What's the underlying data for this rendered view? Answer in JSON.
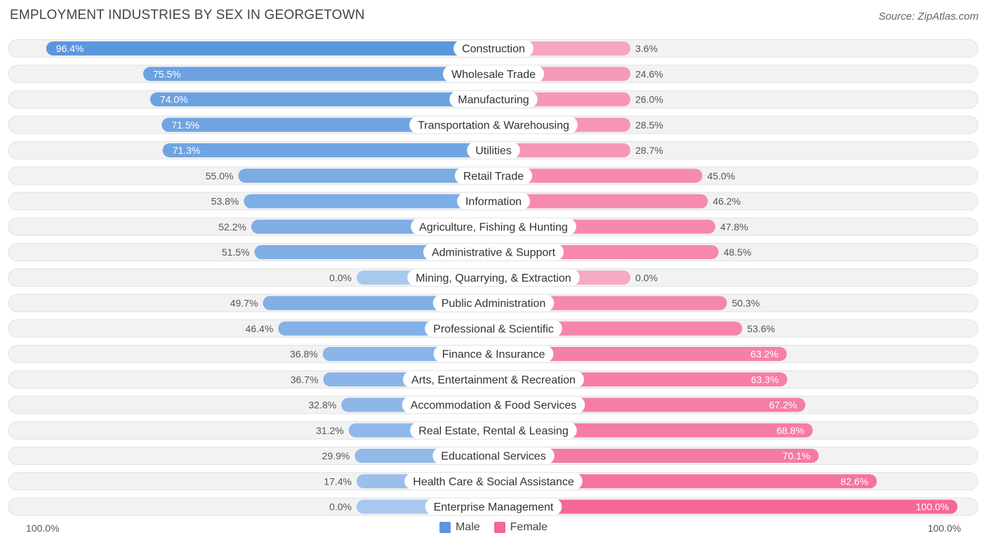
{
  "header": {
    "title": "EMPLOYMENT INDUSTRIES BY SEX IN GEORGETOWN",
    "source": "Source: ZipAtlas.com"
  },
  "axis": {
    "left_label": "100.0%",
    "right_label": "100.0%"
  },
  "legend": {
    "male_label": "Male",
    "female_label": "Female"
  },
  "colors": {
    "male_strong": "#5b97dd",
    "male_light": "#a9c8ee",
    "female_strong": "#f46895",
    "female_light": "#f7a8c2",
    "row_bg": "#f2f2f2",
    "row_border": "#e2e2e2"
  },
  "chart_data": {
    "type": "bar",
    "orientation": "horizontal-diverging",
    "title": "EMPLOYMENT INDUSTRIES BY SEX IN GEORGETOWN",
    "xlim": [
      0,
      100
    ],
    "series": [
      {
        "name": "Male",
        "values": [
          96.4,
          75.5,
          74.0,
          71.5,
          71.3,
          55.0,
          53.8,
          52.2,
          51.5,
          0.0,
          49.7,
          46.4,
          36.8,
          36.7,
          32.8,
          31.2,
          29.9,
          17.4,
          0.0
        ]
      },
      {
        "name": "Female",
        "values": [
          3.6,
          24.6,
          26.0,
          28.5,
          28.7,
          45.0,
          46.2,
          47.8,
          48.5,
          0.0,
          50.3,
          53.6,
          63.2,
          63.3,
          67.2,
          68.8,
          70.1,
          82.6,
          100.0
        ]
      }
    ],
    "categories": [
      "Construction",
      "Wholesale Trade",
      "Manufacturing",
      "Transportation & Warehousing",
      "Utilities",
      "Retail Trade",
      "Information",
      "Agriculture, Fishing & Hunting",
      "Administrative & Support",
      "Mining, Quarrying, & Extraction",
      "Public Administration",
      "Professional & Scientific",
      "Finance & Insurance",
      "Arts, Entertainment & Recreation",
      "Accommodation & Food Services",
      "Real Estate, Rental & Leasing",
      "Educational Services",
      "Health Care & Social Assistance",
      "Enterprise Management"
    ],
    "male_labels": [
      "96.4%",
      "75.5%",
      "74.0%",
      "71.5%",
      "71.3%",
      "55.0%",
      "53.8%",
      "52.2%",
      "51.5%",
      "0.0%",
      "49.7%",
      "46.4%",
      "36.8%",
      "36.7%",
      "32.8%",
      "31.2%",
      "29.9%",
      "17.4%",
      "0.0%"
    ],
    "female_labels": [
      "3.6%",
      "24.6%",
      "26.0%",
      "28.5%",
      "28.7%",
      "45.0%",
      "46.2%",
      "47.8%",
      "48.5%",
      "0.0%",
      "50.3%",
      "53.6%",
      "63.2%",
      "63.3%",
      "67.2%",
      "68.8%",
      "70.1%",
      "82.6%",
      "100.0%"
    ],
    "legend": [
      "Male",
      "Female"
    ],
    "legend_position": "bottom-center"
  }
}
